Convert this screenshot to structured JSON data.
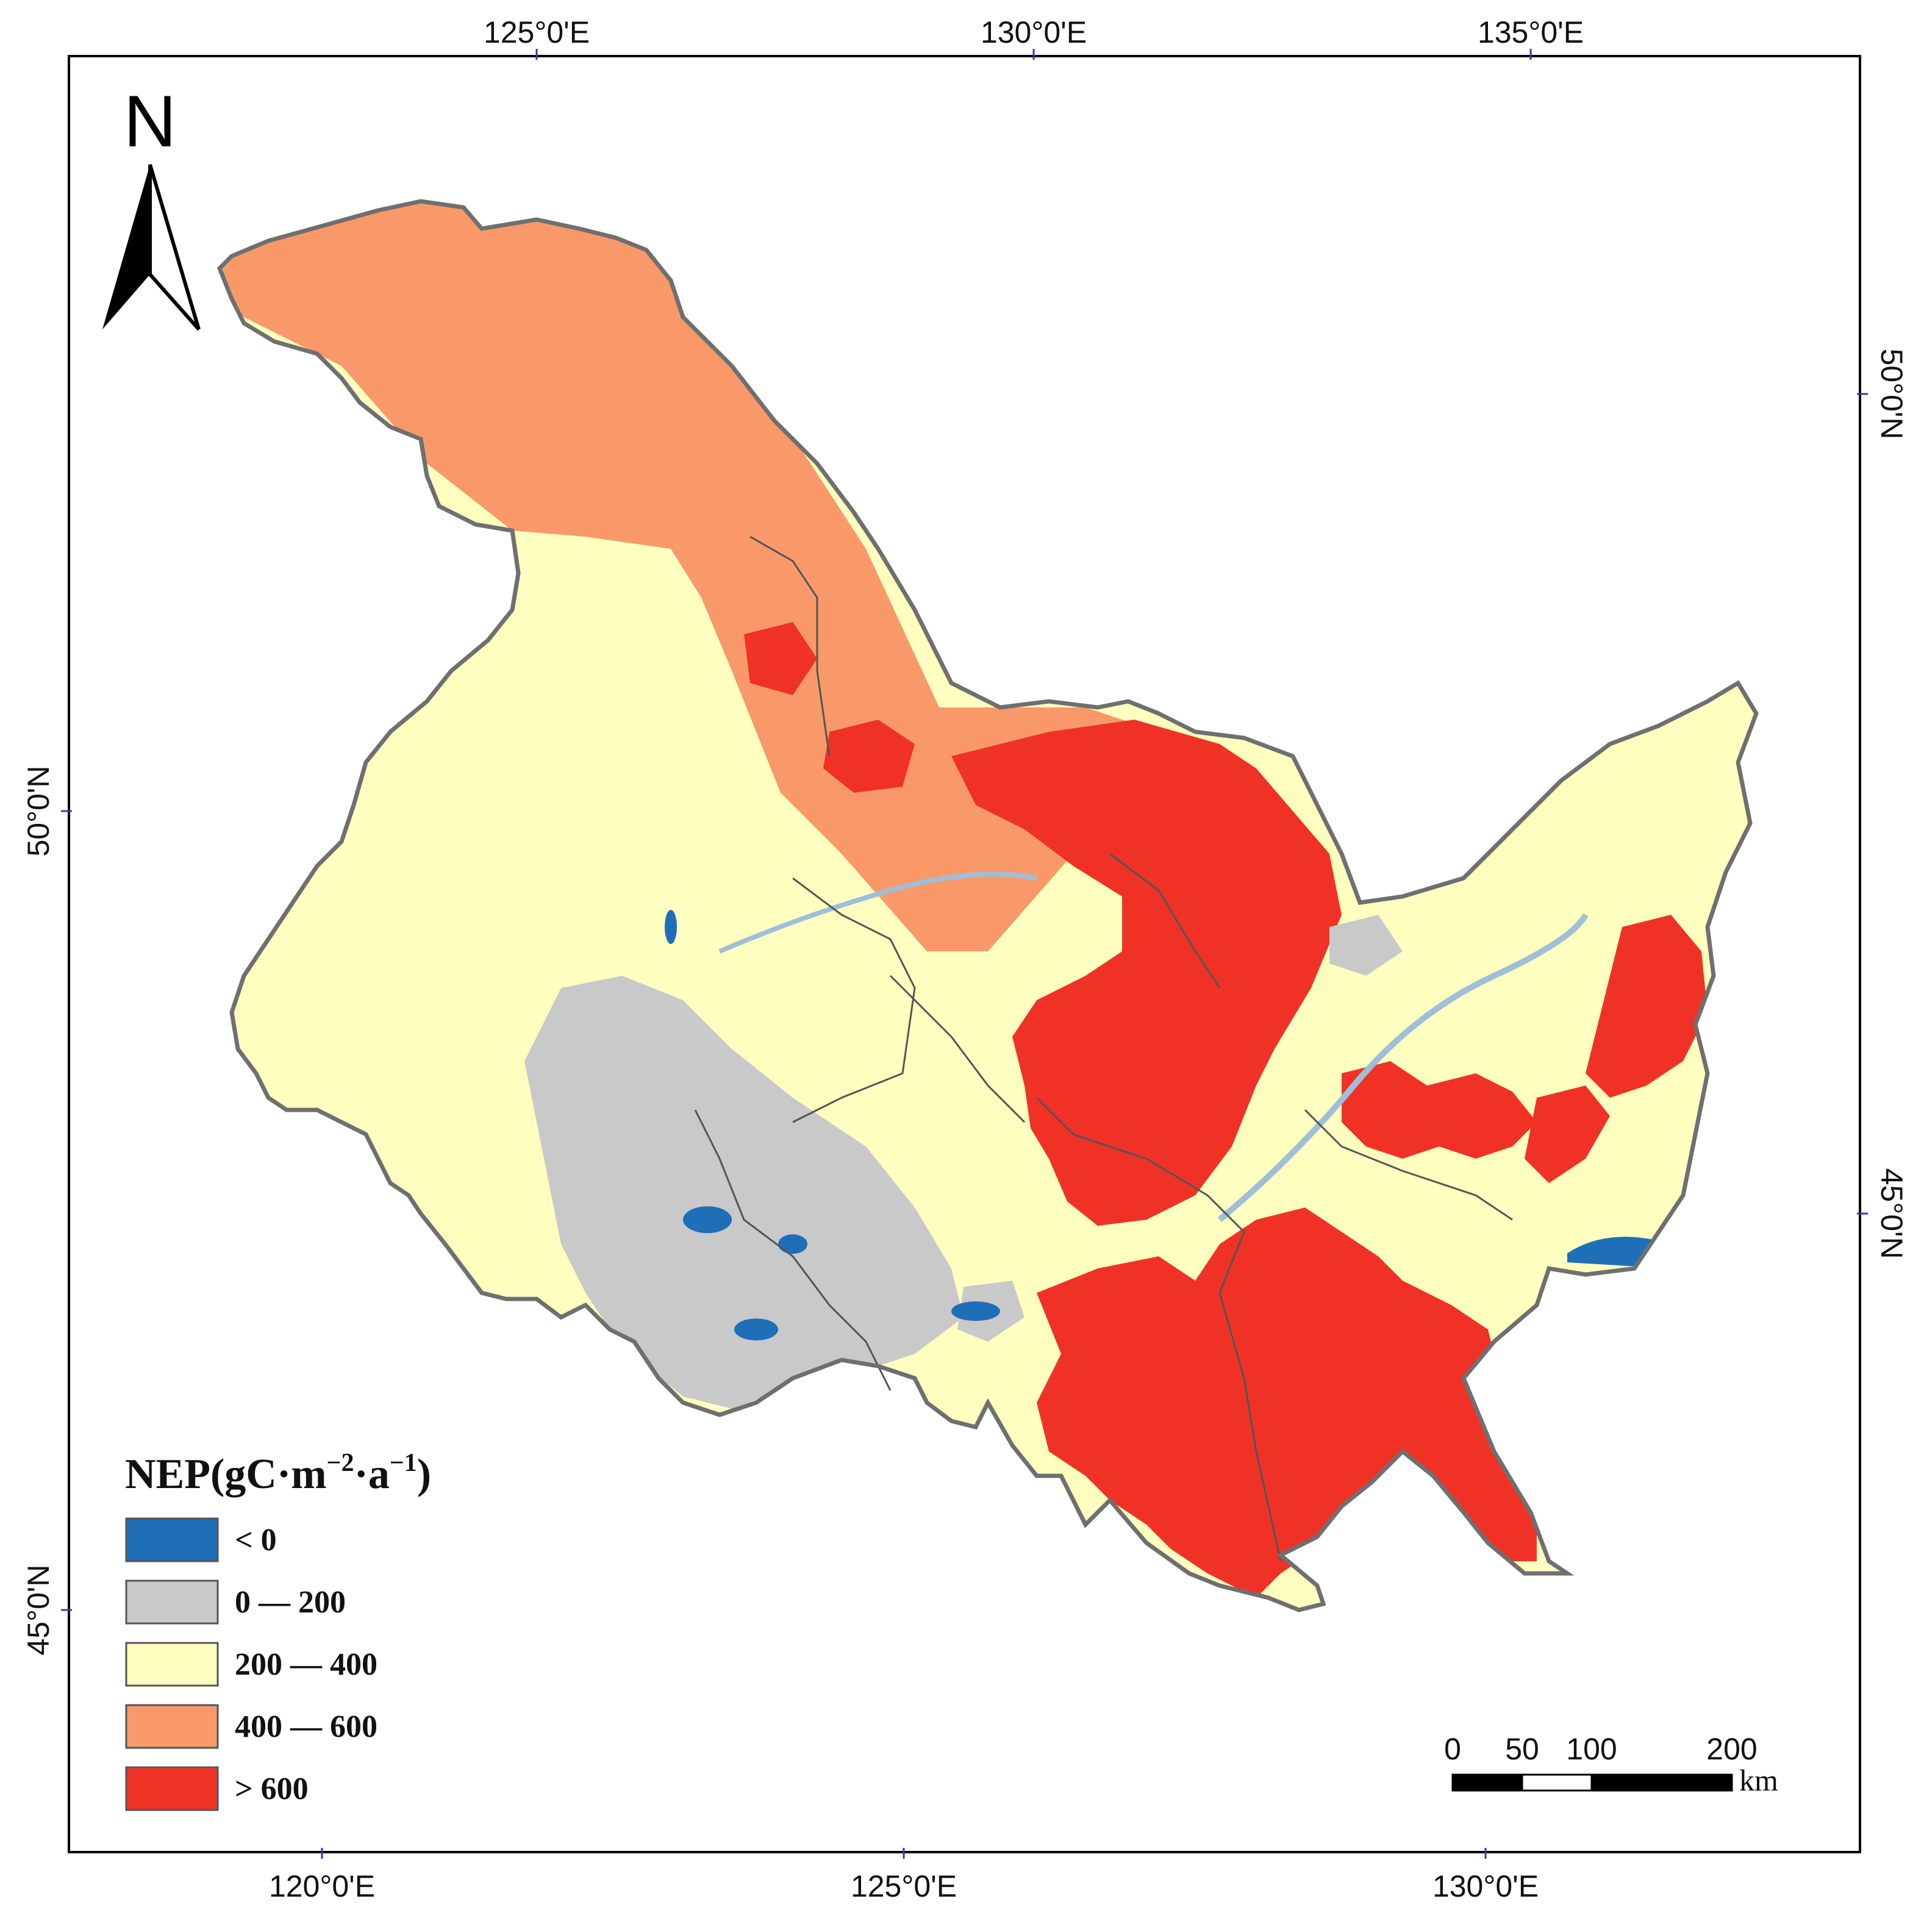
{
  "map": {
    "top_ticks": [
      "125°0'E",
      "130°0'E",
      "135°0'E"
    ],
    "bottom_ticks": [
      "120°0'E",
      "125°0'E",
      "130°0'E"
    ],
    "left_ticks": [
      "50°0'N",
      "45°0'N"
    ],
    "right_ticks": [
      "50°0'N",
      "45°0'N"
    ],
    "north_label": "N",
    "colors": {
      "below_0": "#1f6fb8",
      "0_200": "#c9c9c9",
      "200_400": "#ffffc0",
      "400_600": "#f9996a",
      "above_600": "#f03226",
      "border": "#6f6f6f",
      "internal_border": "#555555"
    }
  },
  "legend": {
    "title_main": "NEP(gC·m",
    "title_sup1": "−2",
    "title_mid": "·a",
    "title_sup2": "−1",
    "title_end": ")",
    "items": [
      {
        "label": "< 0",
        "color": "#1f6fb8"
      },
      {
        "label": "0 — 200",
        "color": "#c9c9c9"
      },
      {
        "label": "200 — 400",
        "color": "#ffffc0"
      },
      {
        "label": "400 — 600",
        "color": "#f9996a"
      },
      {
        "label": "> 600",
        "color": "#f03226"
      }
    ]
  },
  "scalebar": {
    "labels": [
      "0",
      "50",
      "100",
      "200"
    ],
    "unit": "km"
  }
}
